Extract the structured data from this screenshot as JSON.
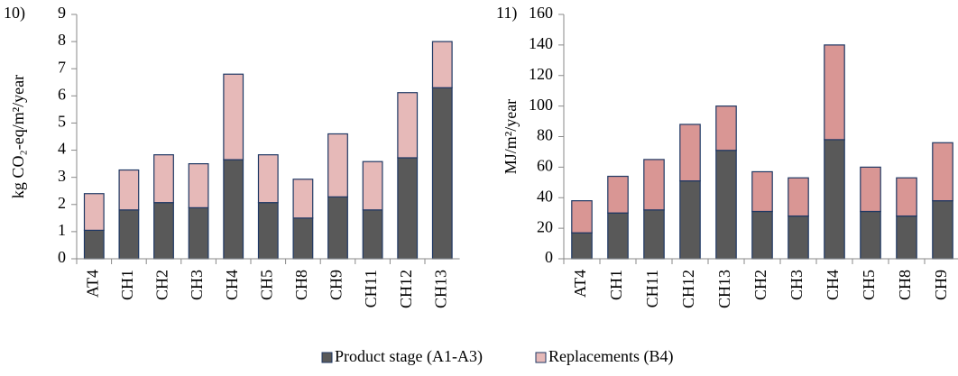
{
  "legend_position": "bottom",
  "chart_data": [
    {
      "type": "stacked_bar",
      "panel_label": "10)",
      "y_label": "kg CO₂-eq/m²/year",
      "categories": [
        "AT4",
        "CH1",
        "CH2",
        "CH3",
        "CH4",
        "CH5",
        "CH8",
        "CH9",
        "CH11",
        "CH12",
        "CH13"
      ],
      "series": [
        {
          "name": "Product stage (A1-A3)",
          "color": "#595959",
          "values": [
            1.05,
            1.8,
            2.07,
            1.88,
            3.65,
            2.07,
            1.5,
            2.28,
            1.8,
            3.72,
            6.3
          ]
        },
        {
          "name": "Replacements (B4)",
          "color": "#e6b9b8",
          "values": [
            1.35,
            1.47,
            1.76,
            1.62,
            3.15,
            1.76,
            1.43,
            2.32,
            1.78,
            2.4,
            1.7
          ]
        }
      ],
      "ylim": [
        0,
        9
      ],
      "yticks": [
        0,
        1,
        2,
        3,
        4,
        5,
        6,
        7,
        8,
        9
      ]
    },
    {
      "type": "stacked_bar",
      "panel_label": "11)",
      "y_label": "MJ/m²/year",
      "categories": [
        "AT4",
        "CH1",
        "CH11",
        "CH12",
        "CH13",
        "CH2",
        "CH3",
        "CH4",
        "CH5",
        "CH8",
        "CH9"
      ],
      "series": [
        {
          "color": "#595959",
          "values": [
            17,
            30,
            32,
            51,
            71,
            31,
            28,
            78,
            31,
            28,
            38
          ]
        },
        {
          "color": "#d99694",
          "values": [
            21,
            24,
            33,
            37,
            29,
            26,
            25,
            62,
            29,
            25,
            38
          ]
        }
      ],
      "ylim": [
        0,
        160
      ],
      "yticks": [
        0,
        20,
        40,
        60,
        80,
        100,
        120,
        140,
        160
      ]
    }
  ]
}
